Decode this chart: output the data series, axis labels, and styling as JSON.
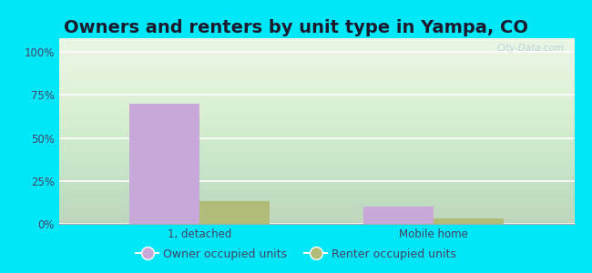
{
  "title": "Owners and renters by unit type in Yampa, CO",
  "categories": [
    "1, detached",
    "Mobile home"
  ],
  "owner_values": [
    70,
    10
  ],
  "renter_values": [
    13,
    3
  ],
  "owner_color": "#c8a8d8",
  "renter_color": "#b0bc78",
  "owner_label": "Owner occupied units",
  "renter_label": "Renter occupied units",
  "yticks": [
    0,
    25,
    50,
    75,
    100
  ],
  "ytick_labels": [
    "0%",
    "25%",
    "50%",
    "75%",
    "100%"
  ],
  "ylim": [
    0,
    108
  ],
  "bar_width": 0.3,
  "outer_bg": "#00e8f8",
  "watermark": "City-Data.com",
  "title_fontsize": 14,
  "tick_fontsize": 8.5,
  "legend_fontsize": 9,
  "title_color": "#1a1a2e",
  "tick_color": "#444466"
}
